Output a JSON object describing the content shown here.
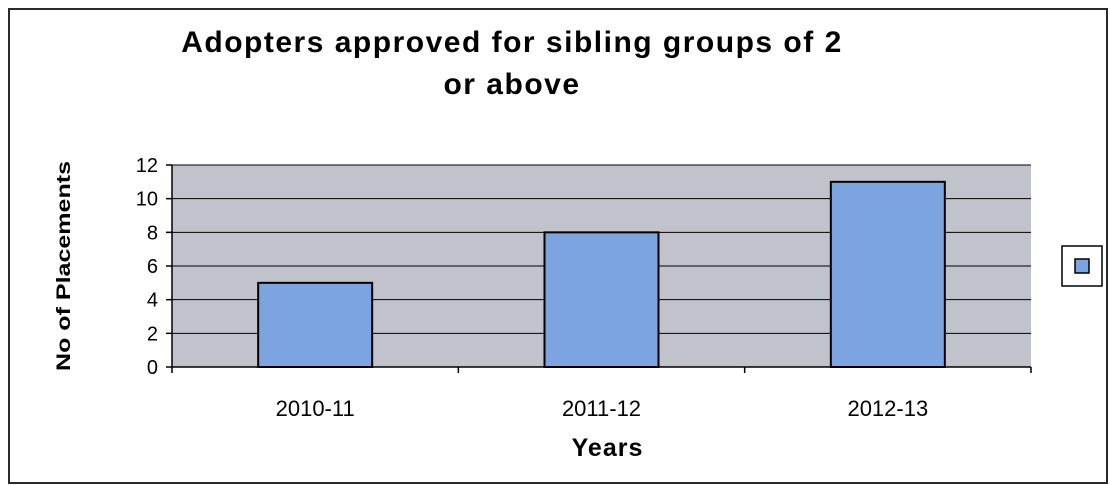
{
  "chart_data": {
    "type": "bar",
    "title": "Adopters approved for sibling groups of 2\nor above",
    "xlabel": "Years",
    "ylabel": "No of Placements",
    "categories": [
      "2010-11",
      "2011-12",
      "2012-13"
    ],
    "series": [
      {
        "values": [
          5,
          8,
          11
        ]
      }
    ],
    "ylim": [
      0,
      12
    ],
    "y_ticks": [
      0,
      2,
      4,
      6,
      8,
      10,
      12
    ],
    "grid": true,
    "legend": "right",
    "colors": {
      "bar_fill": "#7BA4E0",
      "bar_stroke": "#000000",
      "plot_background": "#C0C2CC",
      "gridline": "#000000"
    }
  }
}
